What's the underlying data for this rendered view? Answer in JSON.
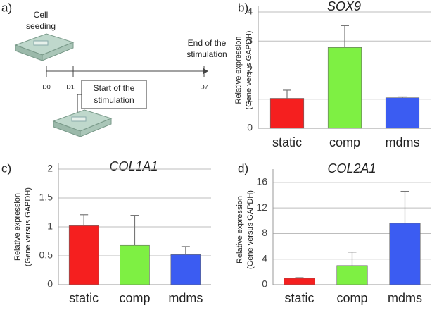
{
  "diagram": {
    "label": "a)",
    "cell_seeding": [
      "Cell",
      "seeding"
    ],
    "end": [
      "End of the",
      "stimulation"
    ],
    "start": [
      "Start of the",
      "stimulation"
    ],
    "days": [
      "D0",
      "D1",
      "D7"
    ]
  },
  "chart_data": [
    {
      "type": "bar",
      "label": "b)",
      "title": "SOX9",
      "ylabel": [
        "Relative expression",
        "(Gene versus GAPDH)"
      ],
      "categories": [
        "static",
        "comp",
        "mdms"
      ],
      "values": [
        1.03,
        2.78,
        1.05
      ],
      "errors": [
        0.28,
        0.75,
        0.03
      ],
      "colors": [
        "#f51f1f",
        "#7ef043",
        "#3b5cf2"
      ],
      "ylim": [
        0,
        4
      ],
      "yticks": [
        0,
        1,
        2,
        3,
        4
      ],
      "grid": true
    },
    {
      "type": "bar",
      "label": "c)",
      "title": "COL1A1",
      "ylabel": [
        "Relative expression",
        "(Gene versus GAPDH)"
      ],
      "categories": [
        "static",
        "comp",
        "mdms"
      ],
      "values": [
        1.02,
        0.68,
        0.52
      ],
      "errors": [
        0.19,
        0.52,
        0.14
      ],
      "colors": [
        "#f51f1f",
        "#7ef043",
        "#3b5cf2"
      ],
      "ylim": [
        0,
        2
      ],
      "yticks": [
        0,
        0.5,
        1,
        1.5,
        2
      ],
      "grid": true
    },
    {
      "type": "bar",
      "label": "d)",
      "title": "COL2A1",
      "ylabel": [
        "Relative expression",
        "(Gene versus GAPDH)"
      ],
      "categories": [
        "static",
        "comp",
        "mdms"
      ],
      "values": [
        1.0,
        3.0,
        9.6
      ],
      "errors": [
        0.1,
        2.1,
        5.0
      ],
      "colors": [
        "#f51f1f",
        "#7ef043",
        "#3b5cf2"
      ],
      "ylim": [
        0,
        17.2
      ],
      "yticks": [
        0,
        4,
        8,
        12,
        16
      ],
      "grid": true
    }
  ]
}
